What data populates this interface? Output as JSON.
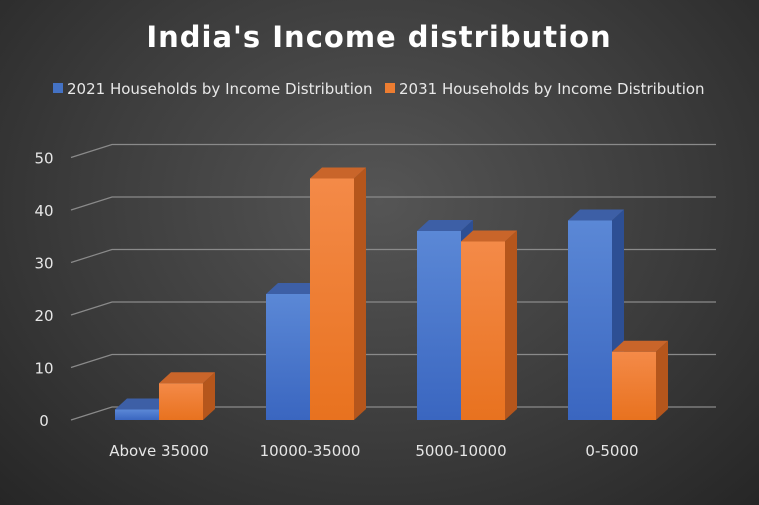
{
  "chart_data": {
    "type": "bar",
    "title": "India's Income distribution",
    "xlabel": "",
    "ylabel": "",
    "categories": [
      "Above 35000",
      "10000-35000",
      "5000-10000",
      "0-5000"
    ],
    "series": [
      {
        "name": "2021 Households by Income Distribution",
        "values": [
          2,
          24,
          36,
          38
        ],
        "color": "#4472c4"
      },
      {
        "name": "2031 Households by Income Distribution",
        "values": [
          7,
          46,
          34,
          13
        ],
        "color": "#ed7d31"
      }
    ],
    "yticks": [
      "0",
      "10",
      "20",
      "30",
      "40",
      "50"
    ],
    "ylim": [
      0,
      50
    ],
    "grid": true,
    "legend": "top"
  }
}
